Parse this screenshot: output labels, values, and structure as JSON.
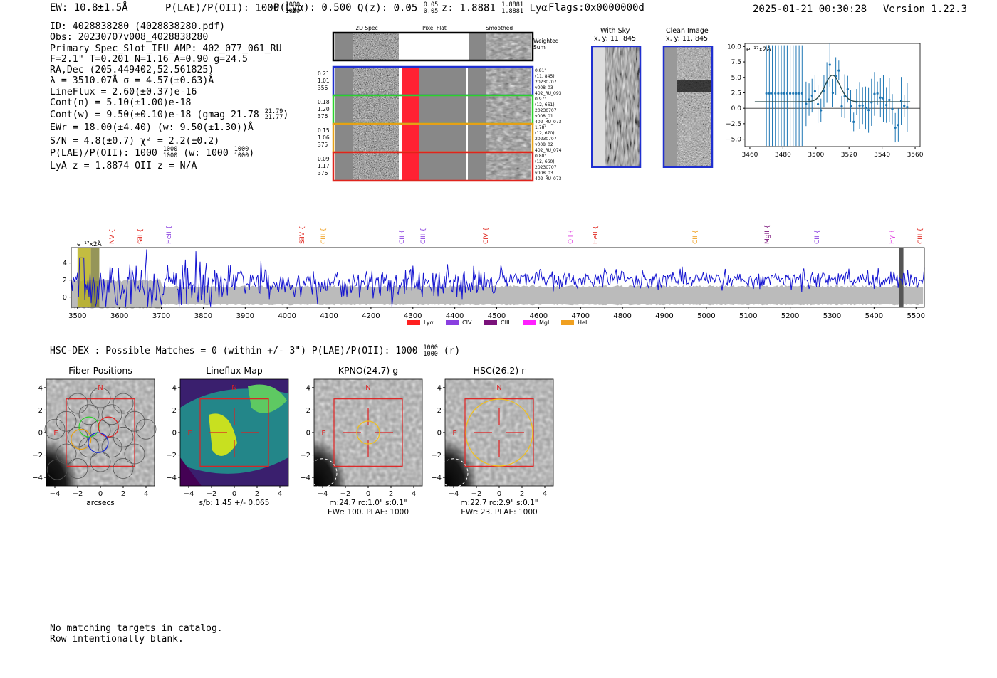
{
  "header": {
    "ew": "EW: 10.8±1.5Å",
    "plae_label": "P(LAE)/P(OII): 1000",
    "plae_hi": "1000",
    "plae_lo": "1000",
    "ply": "P(Lyα): 0.500",
    "qz_label": "Q(z): 0.05",
    "qz_hi": "0.05",
    "qz_lo": "0.05",
    "z_label": "z: 1.8881",
    "z_hi": "1.8881",
    "z_lo": "1.8881",
    "z_line": "Lyα",
    "flags": "Flags:0x0000000d",
    "timestamp": "2025-01-21 00:30:28",
    "version": "Version 1.22.3"
  },
  "info": {
    "id": "ID: 4028838280 (4028838280.pdf)",
    "obs": "Obs: 20230707v008_4028838280",
    "slot": "Primary Spec_Slot_IFU_AMP: 402_077_061_RU",
    "fwhm": "F=2.1\"  T=0.201  N=1.16  A=0.90  g=24.5",
    "radec": "RA,Dec (205.449402,52.561825)",
    "lambda": "λ = 3510.07Å   σ = 4.57(±0.63)Å",
    "lineflux": "LineFlux = 2.60(±0.37)e-16",
    "contn": "Cont(n) = 5.10(±1.00)e-18",
    "contw": "Cont(w) = 9.50(±0.10)e-18 (gmag 21.78",
    "gmag_hi": "21.79",
    "gmag_lo": "21.77",
    "contw_end": ")",
    "ewr": "EWr = 18.00(±4.40) (w: 9.50(±1.30))Å",
    "sn": "S/N = 4.8(±0.7)  χ² = 2.2(±0.2)",
    "plae": "P(LAE)/P(OII): 1000",
    "plae_hi": "1000",
    "plae_lo": "1000",
    "plae_w": "(w: 1000",
    "plae_w_hi": "1000",
    "plae_w_lo": "1000",
    "plae_end": ")",
    "zline": "LyA z = 1.8874  OII z = N/A"
  },
  "cutouts": {
    "col_2d": "2D Spec",
    "col_flat": "Pixel Flat",
    "col_smooth": "Smoothed",
    "weighted": "Weighted\nSum",
    "rows": [
      {
        "l1": "0.21",
        "l2": "1.01",
        "l3": "356",
        "r1": "0.81\"",
        "r2": "(11, 845)",
        "r3": "20230707",
        "r4": "v008_03",
        "r5": "402_RU_093",
        "color": "#1f2fd0"
      },
      {
        "l1": "0.18",
        "l2": "1.20",
        "l3": "376",
        "r1": "0.97\"",
        "r2": "(12, 661)",
        "r3": "20230707",
        "r4": "v008_01",
        "r5": "402_RU_073",
        "color": "#2bd12b"
      },
      {
        "l1": "0.15",
        "l2": "1.06",
        "l3": "375",
        "r1": "1.78\"",
        "r2": "(12, 670)",
        "r3": "20230707",
        "r4": "v008_02",
        "r5": "402_RU_074",
        "color": "#e6a015"
      },
      {
        "l1": "0.09",
        "l2": "1.17",
        "l3": "376",
        "r1": "0.80\"",
        "r2": "(12, 660)",
        "r3": "20230707",
        "r4": "v008_03",
        "r5": "402_RU_073",
        "color": "#e0241c"
      }
    ]
  },
  "sky": {
    "with_sky": "With Sky",
    "with_sky_xy": "x, y: 11, 845",
    "clean": "Clean Image",
    "clean_xy": "x, y: 11, 845"
  },
  "linefit_chart": {
    "unit": "e⁻¹⁷x2Å",
    "yticks": [
      "10.0",
      "7.5",
      "5.0",
      "2.5",
      "0.0",
      "−2.5",
      "−5.0"
    ],
    "xticks": [
      "3460",
      "3480",
      "3500",
      "3520",
      "3540",
      "3560"
    ]
  },
  "spectrum": {
    "unit": "e⁻¹⁷x2Å",
    "yticks": [
      "4",
      "2",
      "0"
    ],
    "xticks": [
      "3500",
      "3600",
      "3700",
      "3800",
      "3900",
      "4000",
      "4100",
      "4200",
      "4300",
      "4400",
      "4500",
      "4600",
      "4700",
      "4800",
      "4900",
      "5000",
      "5100",
      "5200",
      "5300",
      "5400",
      "5500"
    ],
    "lines": [
      {
        "name": "NV",
        "color": "#e0241c"
      },
      {
        "name": "SiII",
        "color": "#e0241c"
      },
      {
        "name": "HeII",
        "color": "#8a3fe0"
      },
      {
        "name": "SiIV",
        "color": "#e0241c"
      },
      {
        "name": "CIII",
        "color": "#f0a020"
      },
      {
        "name": "CII",
        "color": "#8a3fe0"
      },
      {
        "name": "CIII",
        "color": "#8a3fe0"
      },
      {
        "name": "CIV",
        "color": "#e0241c"
      },
      {
        "name": "OII",
        "color": "#e040e0"
      },
      {
        "name": "HeII",
        "color": "#e0241c"
      },
      {
        "name": "CII",
        "color": "#f0a020"
      },
      {
        "name": "MgII",
        "color": "#7a127a"
      },
      {
        "name": "CII",
        "color": "#8a3fe0"
      },
      {
        "name": "Hγ",
        "color": "#e040e0"
      },
      {
        "name": "CIII",
        "color": "#e0241c"
      }
    ],
    "legend": [
      {
        "name": "Lyα",
        "color": "#ff2020"
      },
      {
        "name": "CIV",
        "color": "#8a3fe0"
      },
      {
        "name": "CIII",
        "color": "#7a127a"
      },
      {
        "name": "MgII",
        "color": "#ff20ff"
      },
      {
        "name": "HeII",
        "color": "#f0a020"
      }
    ]
  },
  "hsc": {
    "summary": "HSC-DEX : Possible Matches = 0 (within +/- 3\")  P(LAE)/P(OII): 1000",
    "plae_hi": "1000",
    "plae_lo": "1000",
    "band": "(r)"
  },
  "panels": [
    {
      "title": "Fiber Positions",
      "cap1": "arcsecs",
      "cap2": ""
    },
    {
      "title": "Lineflux Map",
      "cap1": "s/b: 1.45 +/- 0.065",
      "cap2": ""
    },
    {
      "title": "KPNO(24.7) g",
      "cap1": "m:24.7 rc:1.0\"  s:0.1\"",
      "cap2": "EWr: 100. PLAE: 1000"
    },
    {
      "title": "HSC(26.2) r",
      "cap1": "m:22.7 rc:2.9\"  s:0.1\"",
      "cap2": "EWr: 23. PLAE: 1000"
    }
  ],
  "panel_axis": {
    "ticks": [
      "−4",
      "−2",
      "0",
      "2",
      "4"
    ],
    "north": "N",
    "east": "E"
  },
  "footer": {
    "line1": "No matching targets in catalog.",
    "line2": "Row intentionally blank."
  }
}
